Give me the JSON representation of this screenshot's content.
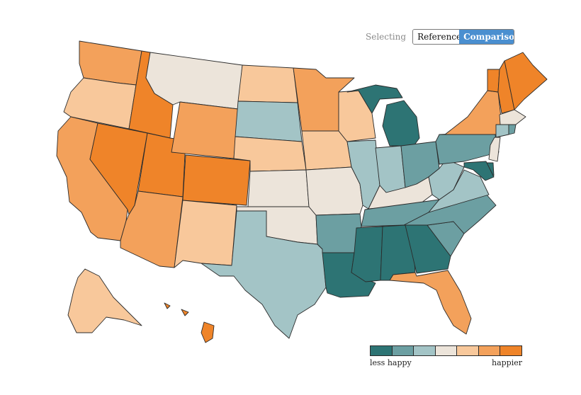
{
  "selector": {
    "label": "Selecting",
    "options": [
      "Reference",
      "Comparison"
    ],
    "selected": "Comparison"
  },
  "legend": {
    "low_label": "less happy",
    "high_label": "happier",
    "colors": [
      "#2d7474",
      "#6c9fa2",
      "#a3c4c6",
      "#ece4da",
      "#f8c89b",
      "#f3a15b",
      "#ef8429"
    ]
  },
  "map_data": {
    "scale_levels": 7,
    "states": [
      {
        "id": "WA",
        "level": 6
      },
      {
        "id": "OR",
        "level": 5
      },
      {
        "id": "CA",
        "level": 6
      },
      {
        "id": "ID",
        "level": 7
      },
      {
        "id": "NV",
        "level": 7
      },
      {
        "id": "UT",
        "level": 7
      },
      {
        "id": "AZ",
        "level": 6
      },
      {
        "id": "MT",
        "level": 4
      },
      {
        "id": "WY",
        "level": 6
      },
      {
        "id": "CO",
        "level": 7
      },
      {
        "id": "NM",
        "level": 5
      },
      {
        "id": "ND",
        "level": 5
      },
      {
        "id": "SD",
        "level": 3
      },
      {
        "id": "NE",
        "level": 5
      },
      {
        "id": "KS",
        "level": 4
      },
      {
        "id": "OK",
        "level": 4
      },
      {
        "id": "TX",
        "level": 3
      },
      {
        "id": "MN",
        "level": 6
      },
      {
        "id": "IA",
        "level": 5
      },
      {
        "id": "MO",
        "level": 4
      },
      {
        "id": "AR",
        "level": 2
      },
      {
        "id": "LA",
        "level": 1
      },
      {
        "id": "WI",
        "level": 5
      },
      {
        "id": "IL",
        "level": 3
      },
      {
        "id": "MI",
        "level": 1
      },
      {
        "id": "IN",
        "level": 3
      },
      {
        "id": "OH",
        "level": 2
      },
      {
        "id": "KY",
        "level": 4
      },
      {
        "id": "TN",
        "level": 2
      },
      {
        "id": "MS",
        "level": 1
      },
      {
        "id": "AL",
        "level": 1
      },
      {
        "id": "GA",
        "level": 1
      },
      {
        "id": "FL",
        "level": 6
      },
      {
        "id": "SC",
        "level": 2
      },
      {
        "id": "NC",
        "level": 2
      },
      {
        "id": "VA",
        "level": 3
      },
      {
        "id": "WV",
        "level": 3
      },
      {
        "id": "PA",
        "level": 2
      },
      {
        "id": "NY",
        "level": 6
      },
      {
        "id": "VT",
        "level": 7
      },
      {
        "id": "NH",
        "level": 7
      },
      {
        "id": "ME",
        "level": 7
      },
      {
        "id": "MA",
        "level": 4
      },
      {
        "id": "CT",
        "level": 3
      },
      {
        "id": "RI",
        "level": 2
      },
      {
        "id": "NJ",
        "level": 4
      },
      {
        "id": "DE",
        "level": 1
      },
      {
        "id": "MD",
        "level": 1
      },
      {
        "id": "AK",
        "level": 5
      },
      {
        "id": "HI",
        "level": 7
      }
    ]
  }
}
